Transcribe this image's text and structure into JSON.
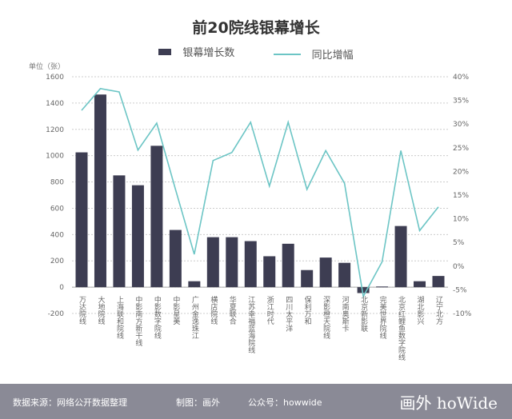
{
  "chart_data": {
    "type": "bar+line",
    "title": "前20院线银幕增长",
    "unit_label": "单位（张）",
    "categories": [
      "万达院线",
      "大地院线",
      "上海联和院线",
      "中影南方新干线",
      "中影数字院线",
      "中影星美",
      "广州金逸珠江",
      "横店院线",
      "华夏联合",
      "江苏幸福蓝海院线",
      "浙江时代",
      "四川太平洋",
      "保利万和",
      "深影橙天院线",
      "河南奥斯卡",
      "北京新影联",
      "完美世界院线",
      "北京红鲤鱼数字院线",
      "湖北影兴",
      "辽宁北方"
    ],
    "series": [
      {
        "name": "银幕增长数",
        "type": "bar",
        "axis": "left",
        "color": "#3d3d52",
        "values": [
          1025,
          1465,
          850,
          775,
          1075,
          435,
          45,
          380,
          380,
          350,
          235,
          330,
          130,
          225,
          185,
          -45,
          5,
          465,
          45,
          85
        ]
      },
      {
        "name": "同比增幅",
        "type": "line",
        "axis": "right",
        "color": "#6cc5c5",
        "values": [
          32.9,
          37.5,
          36.8,
          24.5,
          30.2,
          16.2,
          2.5,
          22.3,
          24.0,
          30.4,
          16.9,
          30.4,
          16.2,
          24.4,
          17.5,
          -6.4,
          0.9,
          24.4,
          7.5,
          12.5
        ]
      }
    ],
    "left_axis": {
      "ylim": [
        -200,
        1600
      ],
      "ticks": [
        "-200",
        "0",
        "200",
        "400",
        "600",
        "800",
        "1000",
        "1200",
        "1400",
        "1600"
      ]
    },
    "right_axis": {
      "ylim": [
        -10,
        40
      ],
      "ticks": [
        "-10%",
        "-5%",
        "0%",
        "5%",
        "10%",
        "15%",
        "20%",
        "25%",
        "30%",
        "35%",
        "40%"
      ]
    },
    "grid": true,
    "legend_position": "top"
  },
  "footer": {
    "source": "数据来源：网络公开数据整理",
    "maker": "制图：画外",
    "account": "公众号：howwide",
    "logo": "画外 hoWide"
  }
}
